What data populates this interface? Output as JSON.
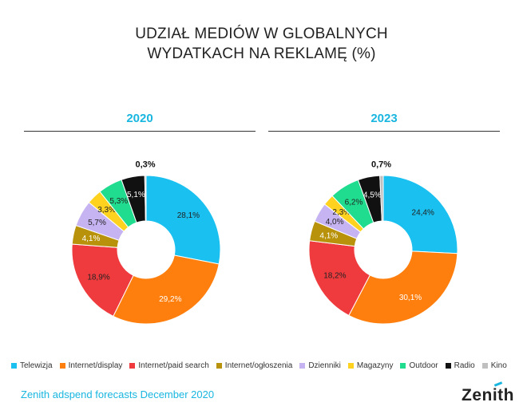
{
  "header": {
    "title_line1": "UDZIAŁ MEDIÓW W GLOBALNYCH",
    "title_line2": "WYDATKACH NA REKLAMĘ (%)"
  },
  "chart_data": [
    {
      "type": "pie",
      "title": "2020",
      "categories": [
        "Telewizja",
        "Internet/display",
        "Internet/paid search",
        "Internet/ogłoszenia",
        "Dzienniki",
        "Magazyny",
        "Outdoor",
        "Radio",
        "Kino"
      ],
      "values": [
        28.1,
        29.2,
        18.9,
        4.1,
        5.7,
        3.3,
        5.3,
        5.1,
        0.3
      ],
      "labels": [
        "28,1%",
        "29,2%",
        "18,9%",
        "4,1%",
        "5,7%",
        "3,3%",
        "5,3%",
        "5,1%",
        "0,3%"
      ]
    },
    {
      "type": "pie",
      "title": "2023",
      "categories": [
        "Telewizja",
        "Internet/display",
        "Internet/paid search",
        "Internet/ogłoszenia",
        "Dzienniki",
        "Magazyny",
        "Outdoor",
        "Radio",
        "Kino"
      ],
      "values": [
        24.4,
        30.1,
        18.2,
        4.1,
        4.0,
        2.3,
        6.2,
        4.5,
        0.7
      ],
      "labels": [
        "24,4%",
        "30,1%",
        "18,2%",
        "4,1%",
        "4,0%",
        "2,3%",
        "6,2%",
        "4,5%",
        "0,7%"
      ]
    }
  ],
  "legend": [
    {
      "label": "Telewizja",
      "color": "#19c0f0"
    },
    {
      "label": "Internet/display",
      "color": "#ff7f0e"
    },
    {
      "label": "Internet/paid search",
      "color": "#ef3b3e"
    },
    {
      "label": "Internet/ogłoszenia",
      "color": "#b8920b"
    },
    {
      "label": "Dzienniki",
      "color": "#c6b3f2"
    },
    {
      "label": "Magazyny",
      "color": "#ffd21f"
    },
    {
      "label": "Outdoor",
      "color": "#1fdc8e"
    },
    {
      "label": "Radio",
      "color": "#111111"
    },
    {
      "label": "Kino",
      "color": "#bfbfbf"
    }
  ],
  "footer": {
    "source": "Zenith adspend forecasts December 2020",
    "brand": "Zenith"
  }
}
